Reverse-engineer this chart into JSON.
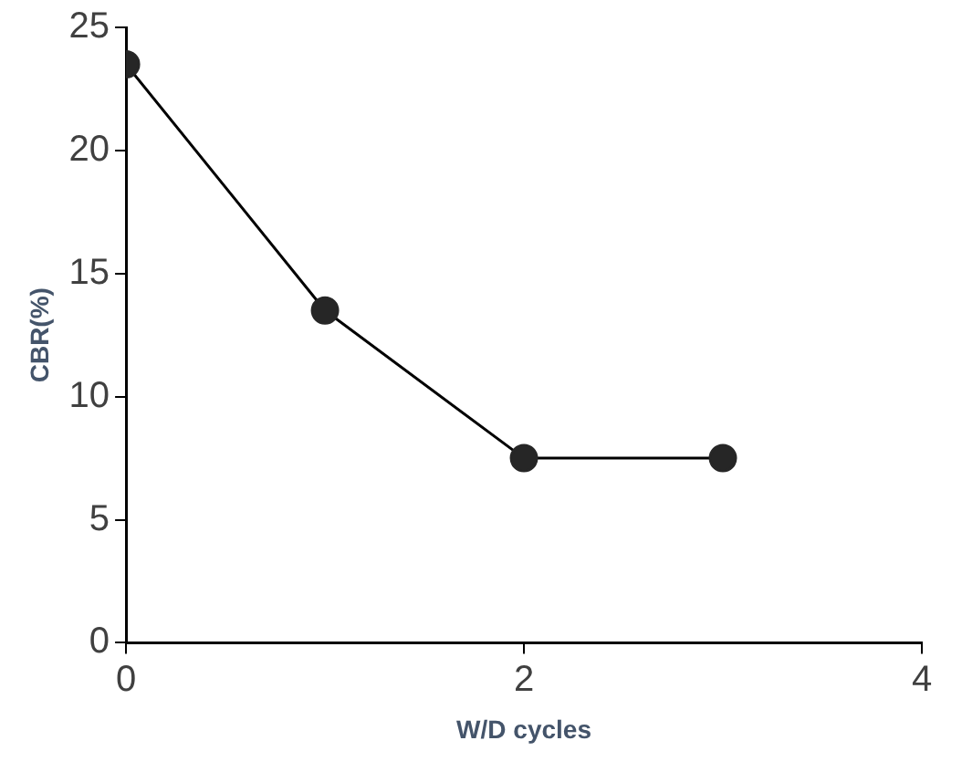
{
  "chart_data": {
    "type": "line",
    "xlabel": "W/D cycles",
    "ylabel": "CBR(%)",
    "x": [
      0,
      1,
      2,
      3
    ],
    "series": [
      {
        "color": "#000000",
        "values": [
          23.5,
          13.5,
          7.5,
          7.5
        ]
      }
    ],
    "marker": "circle",
    "line_style": "solid",
    "grid": false,
    "legend": false,
    "xlim": [
      0,
      4
    ],
    "xticks": [
      0,
      2,
      4
    ],
    "ylim": [
      0,
      25
    ],
    "yticks": [
      0,
      5,
      10,
      15,
      20,
      25
    ]
  }
}
